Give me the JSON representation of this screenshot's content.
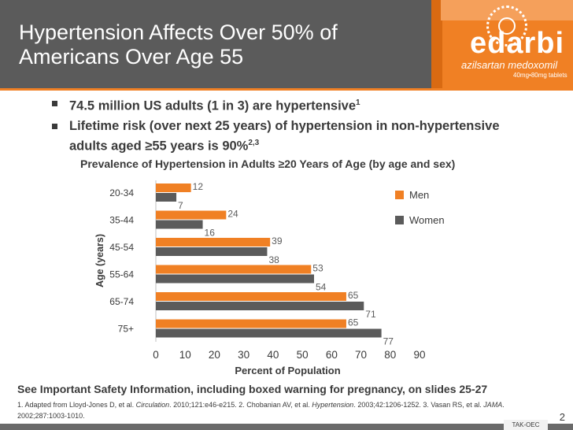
{
  "title": "Hypertension Affects Over 50% of Americans Over Age 55",
  "logo": {
    "brand": "edarbi",
    "generic": "azilsartan medoxomil",
    "dose": "40mg•80mg tablets"
  },
  "bullets": [
    {
      "text": "74.5 million US adults (1 in 3) are hypertensive",
      "sup": "1"
    },
    {
      "text": "Lifetime risk (over next 25 years) of hypertension in non-hypertensive adults aged ≥55 years is 90%",
      "sup": "2,3"
    }
  ],
  "chart_data": {
    "type": "bar",
    "orientation": "horizontal",
    "title": "Prevalence of Hypertension in Adults ≥20 Years of Age (by age and sex)",
    "xlabel": "Percent of Population",
    "ylabel": "Age (years)",
    "categories": [
      "20-34",
      "35-44",
      "45-54",
      "55-64",
      "65-74",
      "75+"
    ],
    "series": [
      {
        "name": "Men",
        "color": "#f08024",
        "values": [
          12,
          24,
          39,
          53,
          65,
          65
        ]
      },
      {
        "name": "Women",
        "color": "#5b5b5b",
        "values": [
          7,
          16,
          38,
          54,
          71,
          77
        ]
      }
    ],
    "xlim": [
      0,
      90
    ],
    "xticks": [
      0,
      10,
      20,
      30,
      40,
      50,
      60,
      70,
      80,
      90
    ],
    "grid": false,
    "legend": "top-right"
  },
  "footer": {
    "warning": "See Important Safety Information, including boxed warning for pregnancy, on slides 25-27",
    "refs": [
      {
        "text": "1. Adapted from Lloyd-Jones D, et al. "
      },
      {
        "text": "Circulation",
        "italic": true
      },
      {
        "text": ". 2010;121:e46-e215. 2. Chobanian AV, et al. "
      },
      {
        "text": "Hypertension",
        "italic": true
      },
      {
        "text": ". 2003;42:1206-1252. 3. Vasan RS, et al. "
      },
      {
        "text": "JAMA",
        "italic": true
      },
      {
        "text": ". 2002;287:1003-1010."
      }
    ],
    "page": "2",
    "code": "TAK-OEC"
  }
}
